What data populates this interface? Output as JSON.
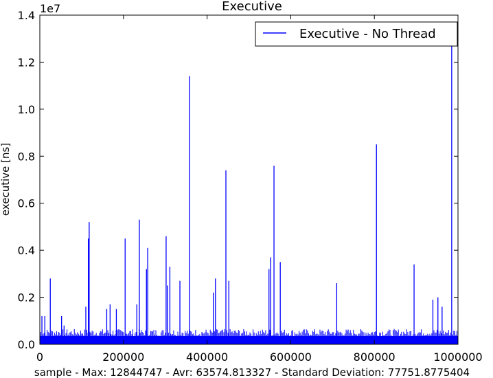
{
  "chart_data": {
    "type": "line",
    "title": "Executive",
    "xlabel": "sample - Max: 12844747 - Avr: 63574.813327 - Standard Deviation: 77751.8775404",
    "ylabel": "executive [ns]",
    "y_multiplier_label": "1e7",
    "xlim": [
      0,
      1000000
    ],
    "ylim": [
      0,
      1.4
    ],
    "xticks": [
      {
        "value": 0,
        "label": "0"
      },
      {
        "value": 200000,
        "label": "200000"
      },
      {
        "value": 400000,
        "label": "400000"
      },
      {
        "value": 600000,
        "label": "600000"
      },
      {
        "value": 800000,
        "label": "800000"
      },
      {
        "value": 1000000,
        "label": "1000000"
      }
    ],
    "yticks": [
      {
        "value": 0.0,
        "label": "0.0"
      },
      {
        "value": 0.2,
        "label": "0.2"
      },
      {
        "value": 0.4,
        "label": "0.4"
      },
      {
        "value": 0.6,
        "label": "0.6"
      },
      {
        "value": 0.8,
        "label": "0.8"
      },
      {
        "value": 1.0,
        "label": "1.0"
      },
      {
        "value": 1.2,
        "label": "1.2"
      },
      {
        "value": 1.4,
        "label": "1.4"
      }
    ],
    "grid": false,
    "legend_position": "top-right",
    "series": [
      {
        "name": "Executive - No Thread",
        "color": "#0000ff",
        "baseline_band": [
          0.0,
          0.035
        ],
        "spikes": [
          {
            "x": 5000,
            "y": 0.12
          },
          {
            "x": 12000,
            "y": 0.12
          },
          {
            "x": 25000,
            "y": 0.28
          },
          {
            "x": 52000,
            "y": 0.12
          },
          {
            "x": 58000,
            "y": 0.08
          },
          {
            "x": 110000,
            "y": 0.16
          },
          {
            "x": 116000,
            "y": 0.45
          },
          {
            "x": 118000,
            "y": 0.52
          },
          {
            "x": 160000,
            "y": 0.15
          },
          {
            "x": 168000,
            "y": 0.17
          },
          {
            "x": 183000,
            "y": 0.15
          },
          {
            "x": 204000,
            "y": 0.45
          },
          {
            "x": 232000,
            "y": 0.17
          },
          {
            "x": 238000,
            "y": 0.53
          },
          {
            "x": 255000,
            "y": 0.32
          },
          {
            "x": 258000,
            "y": 0.41
          },
          {
            "x": 302000,
            "y": 0.46
          },
          {
            "x": 305000,
            "y": 0.25
          },
          {
            "x": 311000,
            "y": 0.33
          },
          {
            "x": 335000,
            "y": 0.27
          },
          {
            "x": 358000,
            "y": 1.14
          },
          {
            "x": 415000,
            "y": 0.22
          },
          {
            "x": 420000,
            "y": 0.28
          },
          {
            "x": 445000,
            "y": 0.74
          },
          {
            "x": 452000,
            "y": 0.27
          },
          {
            "x": 548000,
            "y": 0.32
          },
          {
            "x": 552000,
            "y": 0.37
          },
          {
            "x": 560000,
            "y": 0.76
          },
          {
            "x": 575000,
            "y": 0.35
          },
          {
            "x": 710000,
            "y": 0.26
          },
          {
            "x": 805000,
            "y": 0.85
          },
          {
            "x": 895000,
            "y": 0.34
          },
          {
            "x": 940000,
            "y": 0.19
          },
          {
            "x": 952000,
            "y": 0.2
          },
          {
            "x": 962000,
            "y": 0.16
          },
          {
            "x": 985000,
            "y": 1.28
          }
        ]
      }
    ]
  }
}
